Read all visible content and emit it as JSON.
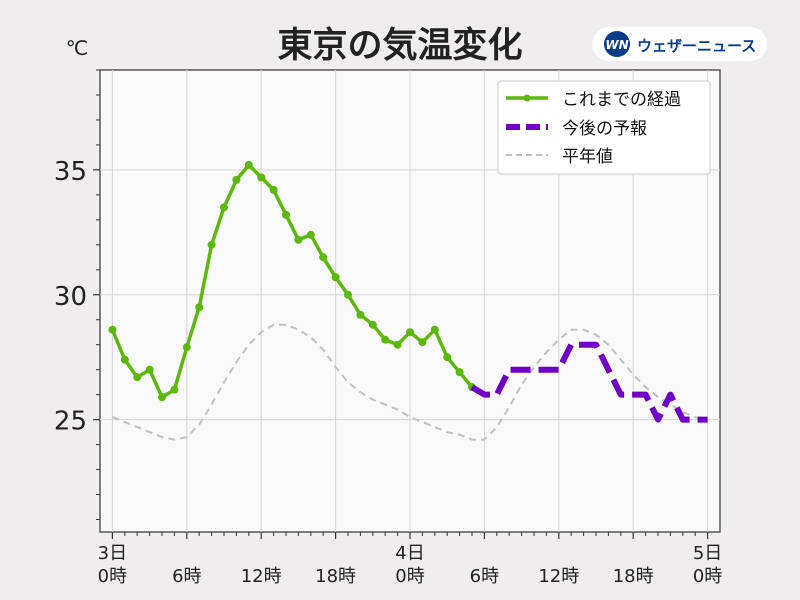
{
  "chart_data": {
    "type": "line",
    "title": "東京の気温変化",
    "ylabel": "℃",
    "ylim": [
      20.5,
      39
    ],
    "xlim": [
      -1,
      49
    ],
    "y_ticks": [
      25,
      30,
      35
    ],
    "x_ticks": [
      {
        "x": 0,
        "line1": "3日",
        "line2": "0時"
      },
      {
        "x": 6,
        "line1": "",
        "line2": "6時"
      },
      {
        "x": 12,
        "line1": "",
        "line2": "12時"
      },
      {
        "x": 18,
        "line1": "",
        "line2": "18時"
      },
      {
        "x": 24,
        "line1": "4日",
        "line2": "0時"
      },
      {
        "x": 30,
        "line1": "",
        "line2": "6時"
      },
      {
        "x": 36,
        "line1": "",
        "line2": "12時"
      },
      {
        "x": 42,
        "line1": "",
        "line2": "18時"
      },
      {
        "x": 48,
        "line1": "5日",
        "line2": "0時"
      }
    ],
    "grid": true,
    "legend_position": "top-right",
    "series": [
      {
        "name": "これまでの経過",
        "color": "#5cb80d",
        "style": "solid-markers",
        "points": [
          [
            0,
            28.6
          ],
          [
            1,
            27.4
          ],
          [
            2,
            26.7
          ],
          [
            3,
            27.0
          ],
          [
            4,
            25.9
          ],
          [
            5,
            26.2
          ],
          [
            6,
            27.9
          ],
          [
            7,
            29.5
          ],
          [
            8,
            32.0
          ],
          [
            9,
            33.5
          ],
          [
            10,
            34.6
          ],
          [
            11,
            35.2
          ],
          [
            12,
            34.7
          ],
          [
            13,
            34.2
          ],
          [
            14,
            33.2
          ],
          [
            15,
            32.2
          ],
          [
            16,
            32.4
          ],
          [
            17,
            31.5
          ],
          [
            18,
            30.7
          ],
          [
            19,
            30.0
          ],
          [
            20,
            29.2
          ],
          [
            21,
            28.8
          ],
          [
            22,
            28.2
          ],
          [
            23,
            28.0
          ],
          [
            24,
            28.5
          ],
          [
            25,
            28.1
          ],
          [
            26,
            28.6
          ],
          [
            27,
            27.5
          ],
          [
            28,
            26.9
          ],
          [
            29,
            26.3
          ]
        ]
      },
      {
        "name": "今後の予報",
        "color": "#7000c8",
        "style": "thick-dashed",
        "points": [
          [
            29,
            26.3
          ],
          [
            30,
            26.0
          ],
          [
            31,
            26.0
          ],
          [
            32,
            27.0
          ],
          [
            33,
            27.0
          ],
          [
            34,
            27.0
          ],
          [
            35,
            27.0
          ],
          [
            36,
            27.0
          ],
          [
            37,
            28.0
          ],
          [
            38,
            28.0
          ],
          [
            39,
            28.0
          ],
          [
            40,
            27.0
          ],
          [
            41,
            26.0
          ],
          [
            42,
            26.0
          ],
          [
            43,
            26.0
          ],
          [
            44,
            25.0
          ],
          [
            45,
            26.0
          ],
          [
            46,
            25.0
          ],
          [
            47,
            25.0
          ],
          [
            48,
            25.0
          ]
        ]
      },
      {
        "name": "平年値",
        "color": "#c0c0c0",
        "style": "thin-dashed",
        "points": [
          [
            0,
            25.1
          ],
          [
            1,
            24.9
          ],
          [
            2,
            24.7
          ],
          [
            3,
            24.5
          ],
          [
            4,
            24.3
          ],
          [
            5,
            24.2
          ],
          [
            6,
            24.3
          ],
          [
            7,
            24.8
          ],
          [
            8,
            25.6
          ],
          [
            9,
            26.5
          ],
          [
            10,
            27.3
          ],
          [
            11,
            28.0
          ],
          [
            12,
            28.5
          ],
          [
            13,
            28.8
          ],
          [
            14,
            28.8
          ],
          [
            15,
            28.6
          ],
          [
            16,
            28.3
          ],
          [
            17,
            27.8
          ],
          [
            18,
            27.1
          ],
          [
            19,
            26.5
          ],
          [
            20,
            26.1
          ],
          [
            21,
            25.8
          ],
          [
            22,
            25.6
          ],
          [
            23,
            25.4
          ],
          [
            24,
            25.1
          ],
          [
            25,
            24.9
          ],
          [
            26,
            24.7
          ],
          [
            27,
            24.5
          ],
          [
            28,
            24.4
          ],
          [
            29,
            24.2
          ],
          [
            30,
            24.2
          ],
          [
            31,
            24.7
          ],
          [
            32,
            25.5
          ],
          [
            33,
            26.4
          ],
          [
            34,
            27.1
          ],
          [
            35,
            27.7
          ],
          [
            36,
            28.2
          ],
          [
            37,
            28.6
          ],
          [
            38,
            28.6
          ],
          [
            39,
            28.4
          ],
          [
            40,
            28.0
          ],
          [
            41,
            27.4
          ],
          [
            42,
            26.8
          ],
          [
            43,
            26.3
          ],
          [
            44,
            25.9
          ],
          [
            45,
            25.6
          ],
          [
            46,
            25.3
          ],
          [
            47,
            25.1
          ],
          [
            48,
            25.0
          ]
        ]
      }
    ]
  },
  "brand": {
    "logo_mark": "WN",
    "name": "ウェザーニュース",
    "accent": "#0a3c8c"
  }
}
